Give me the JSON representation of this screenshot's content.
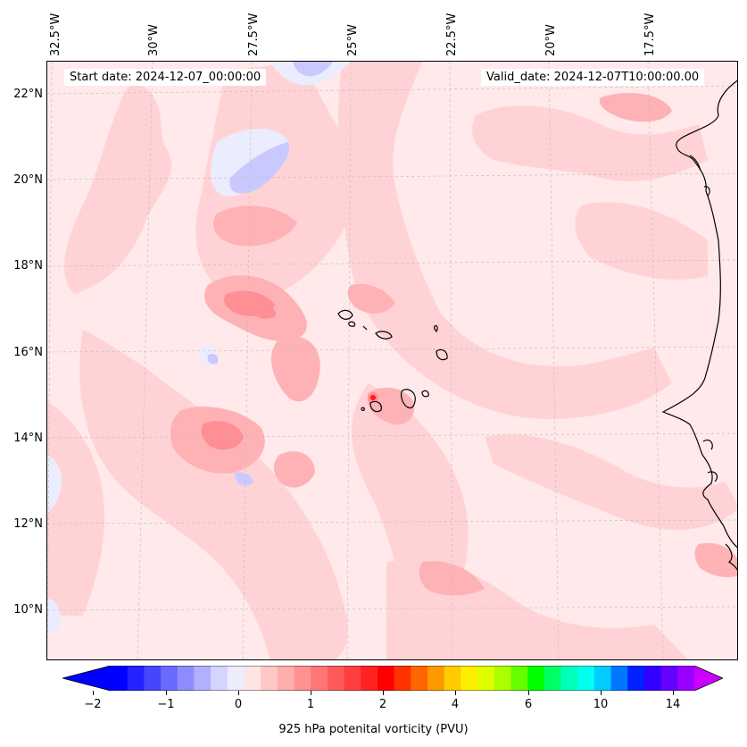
{
  "map": {
    "start_date": "Start date: 2024-12-07_00:00:00",
    "valid_date": "Valid_date: 2024-12-07T10:00:00.00",
    "lon_labels": [
      "32.5°W",
      "30°W",
      "27.5°W",
      "25°W",
      "22.5°W",
      "20°W",
      "17.5°W"
    ],
    "lat_labels": [
      "22°N",
      "20°N",
      "18°N",
      "16°N",
      "14°N",
      "12°N",
      "10°N"
    ],
    "field_colors": {
      "background": "#ffe9ea",
      "light_pink": "#ffd3d5",
      "pink": "#ffb2b6",
      "salmon": "#ff8f95",
      "red": "#ff1a1a",
      "light_blue": "#ececff",
      "blue": "#c9c9ff"
    },
    "coastline_color": "#000000"
  },
  "colorbar": {
    "label": "925 hPa potenital vorticity (PVU)",
    "tick_labels": [
      "−2",
      "−1",
      "0",
      "1",
      "2",
      "4",
      "6",
      "10",
      "14"
    ],
    "colors": [
      "#0000ff",
      "#2323ff",
      "#4646ff",
      "#6a6aff",
      "#8d8dff",
      "#b0b0ff",
      "#d4d4ff",
      "#ececff",
      "#ffe4e4",
      "#ffc8c8",
      "#ffadad",
      "#ff9191",
      "#ff7676",
      "#ff5a5a",
      "#ff3f3f",
      "#ff2323",
      "#ff0000",
      "#ff3300",
      "#ff6600",
      "#ff9900",
      "#ffcc00",
      "#ffee00",
      "#ddff00",
      "#aaff00",
      "#66ff00",
      "#00ff00",
      "#00ff66",
      "#00ffbb",
      "#00ffee",
      "#00ccff",
      "#0077ff",
      "#0022ff",
      "#3300ff",
      "#6600ff",
      "#9900ff"
    ],
    "extend_min_color": "#0000ff",
    "extend_max_color": "#cc00ff"
  }
}
